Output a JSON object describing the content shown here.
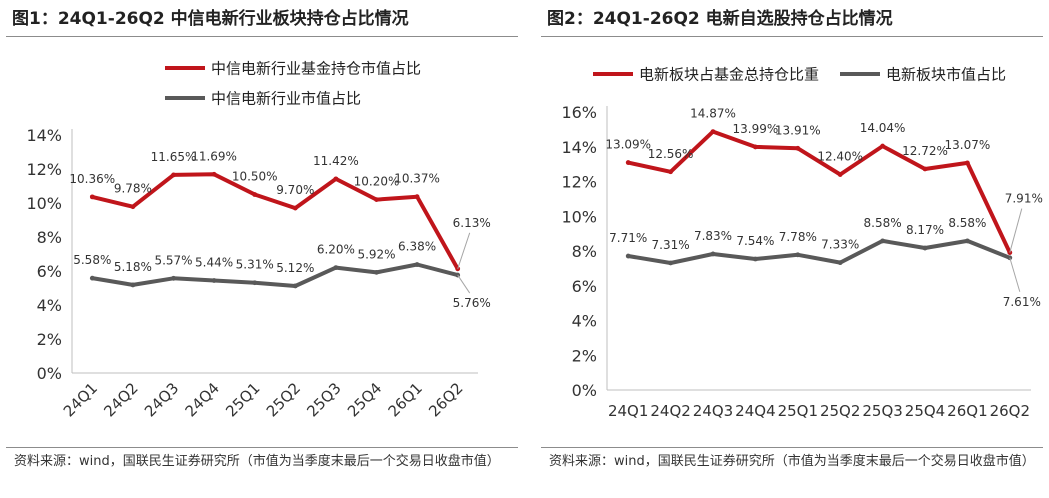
{
  "chart_data": [
    {
      "type": "line",
      "title": "图1：24Q1-26Q2 中信电新行业板块持仓占比情况",
      "categories": [
        "24Q1",
        "24Q2",
        "24Q3",
        "24Q4",
        "25Q1",
        "25Q2",
        "25Q3",
        "25Q4",
        "26Q1",
        "26Q2"
      ],
      "series": [
        {
          "name": "中信电新行业基金持仓市值占比",
          "color": "#c0151b",
          "values": [
            10.36,
            9.78,
            11.65,
            11.69,
            10.5,
            9.7,
            11.42,
            10.2,
            10.37,
            6.13
          ],
          "labels": [
            "10.36%",
            "9.78%",
            "11.65%",
            "11.69%",
            "10.50%",
            "9.70%",
            "11.42%",
            "10.20%",
            "10.37%",
            "6.13%"
          ]
        },
        {
          "name": "中信电新行业市值占比",
          "color": "#595959",
          "values": [
            5.58,
            5.18,
            5.57,
            5.44,
            5.31,
            5.12,
            6.2,
            5.92,
            6.38,
            5.76
          ],
          "labels": [
            "5.58%",
            "5.18%",
            "5.57%",
            "5.44%",
            "5.31%",
            "5.12%",
            "6.20%",
            "5.92%",
            "6.38%",
            "5.76%"
          ]
        }
      ],
      "ylim": [
        0,
        14
      ],
      "yticks": [
        "0%",
        "2%",
        "4%",
        "6%",
        "8%",
        "10%",
        "12%",
        "14%"
      ],
      "yticks_values": [
        0,
        2,
        4,
        6,
        8,
        10,
        12,
        14
      ],
      "legend": "top",
      "grid": false,
      "source": "资料来源：wind，国联民生证券研究所（市值为当季度末最后一个交易日收盘市值）"
    },
    {
      "type": "line",
      "title": "图2：24Q1-26Q2 电新自选股持仓占比情况",
      "categories": [
        "24Q1",
        "24Q2",
        "24Q3",
        "24Q4",
        "25Q1",
        "25Q2",
        "25Q3",
        "25Q4",
        "26Q1",
        "26Q2"
      ],
      "series": [
        {
          "name": "电新板块占基金总持仓比重",
          "color": "#c0151b",
          "values": [
            13.09,
            12.56,
            14.87,
            13.99,
            13.91,
            12.4,
            14.04,
            12.72,
            13.07,
            7.91
          ],
          "labels": [
            "13.09%",
            "12.56%",
            "14.87%",
            "13.99%",
            "13.91%",
            "12.40%",
            "14.04%",
            "12.72%",
            "13.07%",
            "7.91%"
          ]
        },
        {
          "name": "电新板块市值占比",
          "color": "#595959",
          "values": [
            7.71,
            7.31,
            7.83,
            7.54,
            7.78,
            7.33,
            8.58,
            8.17,
            8.58,
            7.61
          ],
          "labels": [
            "7.71%",
            "7.31%",
            "7.83%",
            "7.54%",
            "7.78%",
            "7.33%",
            "8.58%",
            "8.17%",
            "8.58%",
            "7.61%"
          ]
        }
      ],
      "ylim": [
        0,
        16
      ],
      "yticks": [
        "0%",
        "2%",
        "4%",
        "6%",
        "8%",
        "10%",
        "12%",
        "14%",
        "16%"
      ],
      "yticks_values": [
        0,
        2,
        4,
        6,
        8,
        10,
        12,
        14,
        16
      ],
      "legend": "top",
      "grid": false,
      "source": "资料来源：wind，国联民生证券研究所（市值为当季度末最后一个交易日收盘市值）"
    }
  ]
}
